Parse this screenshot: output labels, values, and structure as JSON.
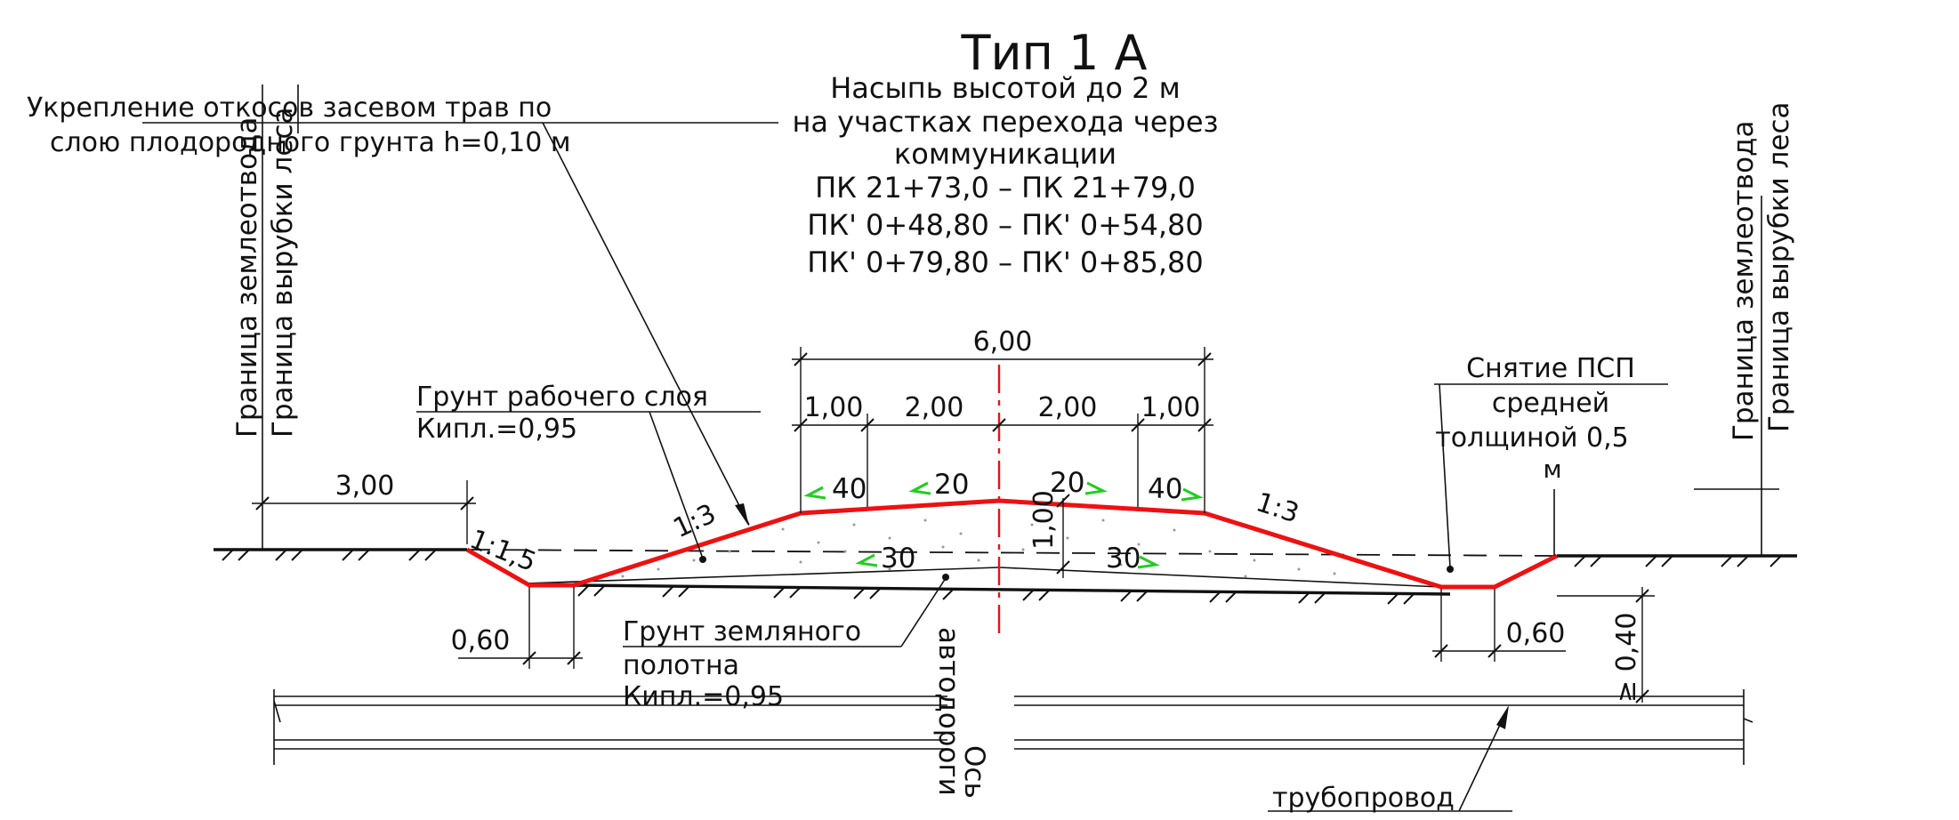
{
  "title": {
    "main": "Тип 1 А",
    "lines": [
      "Насыпь высотой до 2 м",
      "на участках перехода через",
      "коммуникации",
      "ПК 21+73,0 – ПК 21+79,0",
      "ПК' 0+48,80 – ПК' 0+54,80",
      "ПК' 0+79,80 – ПК' 0+85,80"
    ]
  },
  "notes": {
    "slope_reinforcement_1": "Укрепление откосов засевом трав по",
    "slope_reinforcement_2": "слою плодородного грунта h=0,10 м",
    "working_layer_soil": "Грунт рабочего слоя",
    "working_layer_k": "Кипл.=0,95",
    "roadbed_soil_1": "Грунт земляного",
    "roadbed_soil_2": "полотна",
    "roadbed_soil_k": "Кипл.=0,95",
    "psp_removal_1": "Снятие ПСП",
    "psp_removal_2": "средней",
    "psp_removal_3": "толщиной 0,5",
    "psp_removal_4": "м",
    "road_axis_1": "Ось",
    "road_axis_2": "автодороги",
    "pipeline": "трубопровод"
  },
  "boundaries": {
    "left_land": "Граница землеотвода",
    "left_forest": "Граница вырубки леса",
    "right_land": "Граница землеотвода",
    "right_forest": "Граница вырубки леса"
  },
  "dimensions": {
    "top_total": "6,00",
    "seg_left_outer": "1,00",
    "seg_left_inner": "2,00",
    "seg_right_inner": "2,00",
    "seg_right_outer": "1,00",
    "left_berm": "3,00",
    "left_ditch": "0,60",
    "right_ditch": "0,60",
    "center_height": "1,00",
    "pipe_depth": "≥ 0,40"
  },
  "slopes": {
    "left_ditch_slope": "1:1,5",
    "left_embankment": "1:3",
    "right_embankment": "1:3",
    "shoulder_left": "40",
    "lane_left": "20",
    "lane_right": "20",
    "shoulder_right": "40",
    "base_left": "30",
    "base_right": "30"
  },
  "colors": {
    "embankment_outline": "#ee1111",
    "axis_line": "#ee1111",
    "slope_arrows": "#22cc22",
    "linework": "#111111"
  }
}
